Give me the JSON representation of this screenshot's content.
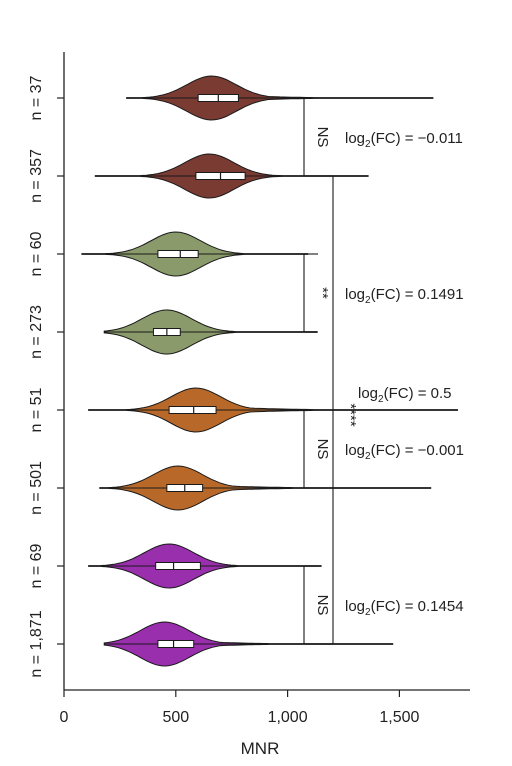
{
  "chart_data": {
    "type": "violin",
    "orientation": "horizontal",
    "xlabel": "MNR",
    "xlim": [
      0,
      1750
    ],
    "xticks": [
      0,
      500,
      1000,
      1500
    ],
    "xtick_labels": [
      "0",
      "500",
      "1,000",
      "1,500"
    ],
    "series": [
      {
        "label": "n = 37",
        "color": "#7a3b32",
        "min": 280,
        "q1": 600,
        "median": 690,
        "q3": 780,
        "max": 1650,
        "peak": 660
      },
      {
        "label": "n = 357",
        "color": "#7a3b32",
        "min": 140,
        "q1": 590,
        "median": 700,
        "q3": 810,
        "max": 1360,
        "peak": 650
      },
      {
        "label": "n = 60",
        "color": "#8a9a6a",
        "min": 80,
        "q1": 420,
        "median": 520,
        "q3": 600,
        "max": 1090,
        "peak": 500
      },
      {
        "label": "n = 273",
        "color": "#8a9a6a",
        "min": 180,
        "q1": 400,
        "median": 460,
        "q3": 520,
        "max": 1130,
        "peak": 460
      },
      {
        "label": "n = 51",
        "color": "#b8692a",
        "min": 110,
        "q1": 470,
        "median": 580,
        "q3": 680,
        "max": 1760,
        "peak": 590
      },
      {
        "label": "n = 501",
        "color": "#b8692a",
        "min": 160,
        "q1": 460,
        "median": 540,
        "q3": 620,
        "max": 1640,
        "peak": 510
      },
      {
        "label": "n = 69",
        "color": "#9a2fae",
        "min": 110,
        "q1": 410,
        "median": 490,
        "q3": 610,
        "max": 1150,
        "peak": 470
      },
      {
        "label": "n = 1,871",
        "color": "#9a2fae",
        "min": 180,
        "q1": 420,
        "median": 490,
        "q3": 580,
        "max": 1470,
        "peak": 450
      }
    ],
    "comparisons": [
      {
        "between": [
          0,
          1
        ],
        "sig": "NS",
        "base": "log",
        "sub": "2",
        "rest": "(FC) = −0.011"
      },
      {
        "between": [
          2,
          3
        ],
        "sig": "**",
        "base": "log",
        "sub": "2",
        "rest": "(FC) = 0.1491"
      },
      {
        "between": [
          4,
          5
        ],
        "sig": "NS",
        "base": "log",
        "sub": "2",
        "rest": "(FC) = −0.001"
      },
      {
        "between": [
          6,
          7
        ],
        "sig": "NS",
        "base": "log",
        "sub": "2",
        "rest": "(FC) = 0.1454"
      }
    ],
    "outer_comparison": {
      "between": [
        1,
        7
      ],
      "sig": "****",
      "base": "log",
      "sub": "2",
      "rest": "(FC) = 0.5"
    }
  }
}
